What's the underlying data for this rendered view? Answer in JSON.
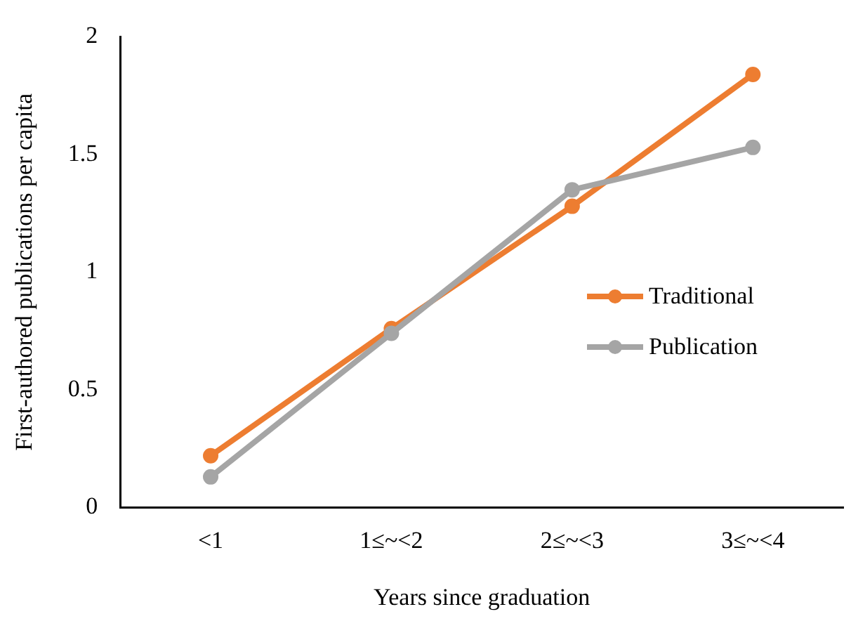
{
  "chart_data": {
    "type": "line",
    "xlabel": "Years since graduation",
    "ylabel": "First-authored publications per capita",
    "categories": [
      "<1",
      "1≤~<2",
      "2≤~<3",
      "3≤~<4"
    ],
    "series": [
      {
        "name": "Traditional",
        "color": "#ed7d31",
        "values": [
          0.22,
          0.76,
          1.28,
          1.84
        ]
      },
      {
        "name": "Publication",
        "color": "#a5a5a5",
        "values": [
          0.13,
          0.74,
          1.35,
          1.53
        ]
      }
    ],
    "ylim": [
      0,
      2
    ],
    "yticks": [
      0,
      0.5,
      1,
      1.5,
      2
    ],
    "grid": false,
    "legend": "right",
    "marker": "circle",
    "line_style": "solid"
  }
}
